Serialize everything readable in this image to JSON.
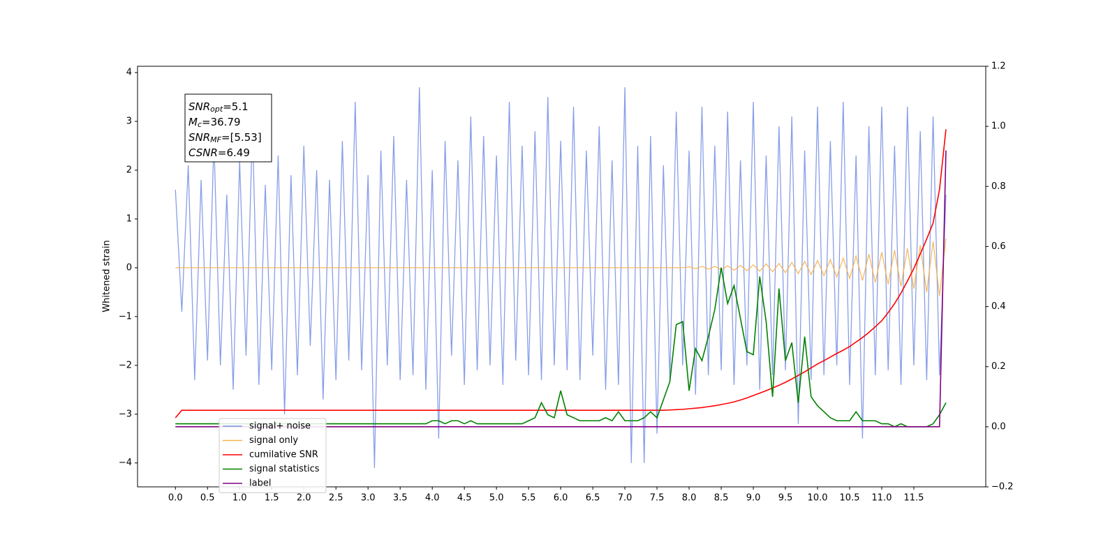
{
  "chart_data": {
    "type": "line",
    "y_label": "Whitened strain",
    "annotations": [
      {
        "symbol": "SNR",
        "sub": "opt",
        "text": "=5.1"
      },
      {
        "symbol": "M",
        "sub": "c",
        "text": "=36.79"
      },
      {
        "symbol": "SNR",
        "sub": "MF",
        "text": "=[5.53]"
      },
      {
        "symbol": "CSNR",
        "sub": null,
        "text": "=6.49"
      }
    ],
    "x": [
      0,
      0.1,
      0.2,
      0.3,
      0.4,
      0.5,
      0.6,
      0.7,
      0.8,
      0.9,
      1,
      1.1,
      1.2,
      1.3,
      1.4,
      1.5,
      1.6,
      1.7,
      1.8,
      1.9,
      2,
      2.1,
      2.2,
      2.3,
      2.4,
      2.5,
      2.6,
      2.7,
      2.8,
      2.9,
      3,
      3.1,
      3.2,
      3.3,
      3.4,
      3.5,
      3.6,
      3.7,
      3.8,
      3.9,
      4,
      4.1,
      4.2,
      4.3,
      4.4,
      4.5,
      4.6,
      4.7,
      4.8,
      4.9,
      5,
      5.1,
      5.2,
      5.3,
      5.4,
      5.5,
      5.6,
      5.7,
      5.8,
      5.9,
      6,
      6.1,
      6.2,
      6.3,
      6.4,
      6.5,
      6.6,
      6.7,
      6.8,
      6.9,
      7,
      7.1,
      7.2,
      7.3,
      7.4,
      7.5,
      7.6,
      7.7,
      7.8,
      7.9,
      8,
      8.1,
      8.2,
      8.3,
      8.4,
      8.5,
      8.6,
      8.7,
      8.8,
      8.9,
      9,
      9.1,
      9.2,
      9.3,
      9.4,
      9.5,
      9.6,
      9.7,
      9.8,
      9.9,
      10,
      10.1,
      10.2,
      10.3,
      10.4,
      10.5,
      10.6,
      10.7,
      10.8,
      10.9,
      11,
      11.1,
      11.2,
      11.3,
      11.4,
      11.5,
      11.6,
      11.7,
      11.8,
      11.9,
      12
    ],
    "series": [
      {
        "name": "signal+ noise",
        "color": "#7b93e6",
        "axis": "y",
        "values": [
          1.6,
          -0.9,
          2.1,
          -2.3,
          1.8,
          -1.9,
          2.6,
          -2.0,
          1.5,
          -2.5,
          2.2,
          -1.8,
          2.9,
          -2.4,
          1.7,
          -2.1,
          2.3,
          -3.0,
          1.9,
          -2.2,
          2.5,
          -1.6,
          2.0,
          -2.7,
          1.8,
          -2.3,
          2.6,
          -1.9,
          3.4,
          -2.1,
          1.9,
          -4.1,
          2.4,
          -2.0,
          2.7,
          -2.3,
          1.8,
          -2.2,
          3.7,
          -2.5,
          2.0,
          -3.5,
          2.6,
          -1.8,
          2.2,
          -2.4,
          3.1,
          -2.1,
          2.7,
          -2.0,
          2.3,
          -2.4,
          3.4,
          -1.9,
          2.5,
          -2.2,
          2.8,
          -2.3,
          3.5,
          -2.0,
          2.6,
          -2.1,
          3.3,
          -2.3,
          2.4,
          -1.8,
          2.9,
          -2.5,
          2.2,
          -2.4,
          3.7,
          -4.0,
          2.5,
          -4.0,
          2.7,
          -3.4,
          2.1,
          -2.3,
          3.2,
          -2.0,
          2.4,
          -2.6,
          3.3,
          -2.2,
          2.5,
          -2.1,
          3.2,
          -2.4,
          2.2,
          -2.0,
          3.4,
          -2.5,
          2.3,
          -2.2,
          2.9,
          -2.1,
          3.1,
          -3.2,
          2.4,
          -2.3,
          3.3,
          -2.2,
          2.6,
          -2.0,
          3.4,
          -2.4,
          2.3,
          -3.5,
          2.9,
          -2.2,
          3.3,
          -2.1,
          2.5,
          -2.4,
          3.3,
          -2.0,
          2.8,
          -2.3,
          3.1,
          -2.2,
          1.5
        ]
      },
      {
        "name": "signal only",
        "color": "#f5b14f",
        "axis": "y",
        "values": [
          0,
          0,
          0,
          0,
          0,
          0,
          0,
          0,
          0,
          0,
          0,
          0,
          0,
          0,
          0,
          0,
          0,
          0,
          0,
          0,
          0,
          0,
          0,
          0,
          0,
          0,
          0,
          0,
          0,
          0,
          0,
          0,
          0,
          0,
          0,
          0,
          0,
          0,
          0,
          0,
          0,
          0,
          0,
          0,
          0,
          0,
          0,
          0,
          0,
          0,
          0,
          0,
          0,
          0,
          0,
          0,
          0,
          0,
          0,
          0,
          0,
          0,
          0,
          0,
          0,
          0,
          0,
          0,
          0,
          0,
          0,
          0,
          0,
          0,
          0,
          0,
          0,
          0,
          0,
          0,
          0.02,
          -0.02,
          0.03,
          -0.03,
          0.03,
          -0.04,
          0.04,
          -0.05,
          0.05,
          -0.06,
          0.06,
          -0.07,
          0.08,
          -0.08,
          0.09,
          -0.1,
          0.11,
          -0.12,
          0.13,
          -0.14,
          0.15,
          -0.16,
          0.17,
          -0.19,
          0.2,
          -0.22,
          0.24,
          -0.26,
          0.28,
          -0.3,
          0.32,
          -0.34,
          0.36,
          -0.38,
          0.4,
          -0.43,
          0.46,
          -0.5,
          0.54,
          -0.58,
          0.6
        ]
      },
      {
        "name": "cumilative SNR",
        "color": "#ff0000",
        "axis": "y2",
        "values": [
          0.03,
          0.055,
          0.055,
          0.055,
          0.055,
          0.055,
          0.055,
          0.055,
          0.055,
          0.055,
          0.055,
          0.055,
          0.055,
          0.055,
          0.055,
          0.055,
          0.055,
          0.055,
          0.055,
          0.055,
          0.055,
          0.055,
          0.055,
          0.055,
          0.055,
          0.055,
          0.055,
          0.055,
          0.055,
          0.055,
          0.055,
          0.055,
          0.055,
          0.055,
          0.055,
          0.055,
          0.055,
          0.055,
          0.055,
          0.055,
          0.055,
          0.055,
          0.055,
          0.055,
          0.055,
          0.055,
          0.055,
          0.055,
          0.055,
          0.055,
          0.055,
          0.055,
          0.055,
          0.055,
          0.055,
          0.055,
          0.055,
          0.055,
          0.055,
          0.055,
          0.055,
          0.055,
          0.055,
          0.055,
          0.055,
          0.055,
          0.055,
          0.055,
          0.055,
          0.055,
          0.055,
          0.055,
          0.055,
          0.055,
          0.055,
          0.055,
          0.055,
          0.056,
          0.057,
          0.058,
          0.06,
          0.062,
          0.064,
          0.067,
          0.07,
          0.074,
          0.078,
          0.083,
          0.089,
          0.096,
          0.104,
          0.112,
          0.12,
          0.129,
          0.138,
          0.148,
          0.159,
          0.171,
          0.183,
          0.196,
          0.209,
          0.22,
          0.232,
          0.244,
          0.255,
          0.267,
          0.282,
          0.297,
          0.314,
          0.333,
          0.353,
          0.38,
          0.41,
          0.445,
          0.485,
          0.527,
          0.575,
          0.625,
          0.678,
          0.79,
          0.99
        ]
      },
      {
        "name": "signal statistics",
        "color": "#008000",
        "axis": "y2",
        "values": [
          0.01,
          0.01,
          0.01,
          0.01,
          0.01,
          0.01,
          0.01,
          0.01,
          0.01,
          0.01,
          0.01,
          0.01,
          0.01,
          0.01,
          0.01,
          0.01,
          0.01,
          0.01,
          0.01,
          0.01,
          0.01,
          0.01,
          0.01,
          0.01,
          0.01,
          0.01,
          0.01,
          0.01,
          0.01,
          0.01,
          0.01,
          0.01,
          0.01,
          0.01,
          0.01,
          0.01,
          0.01,
          0.01,
          0.01,
          0.01,
          0.02,
          0.02,
          0.01,
          0.02,
          0.02,
          0.01,
          0.02,
          0.01,
          0.01,
          0.01,
          0.01,
          0.01,
          0.01,
          0.01,
          0.01,
          0.02,
          0.03,
          0.08,
          0.04,
          0.03,
          0.12,
          0.04,
          0.03,
          0.02,
          0.02,
          0.02,
          0.02,
          0.03,
          0.02,
          0.05,
          0.02,
          0.02,
          0.02,
          0.03,
          0.05,
          0.03,
          0.09,
          0.15,
          0.34,
          0.35,
          0.12,
          0.26,
          0.22,
          0.3,
          0.39,
          0.53,
          0.41,
          0.47,
          0.36,
          0.25,
          0.24,
          0.5,
          0.35,
          0.1,
          0.46,
          0.22,
          0.28,
          0.08,
          0.3,
          0.1,
          0.07,
          0.05,
          0.03,
          0.02,
          0.02,
          0.02,
          0.05,
          0.02,
          0.02,
          0.02,
          0.01,
          0.01,
          0.0,
          0.01,
          0.0,
          0.0,
          0.0,
          0.0,
          0.01,
          0.04,
          0.08
        ]
      },
      {
        "name": "label",
        "color": "#800080",
        "axis": "y2",
        "values": [
          0,
          0,
          0,
          0,
          0,
          0,
          0,
          0,
          0,
          0,
          0,
          0,
          0,
          0,
          0,
          0,
          0,
          0,
          0,
          0,
          0,
          0,
          0,
          0,
          0,
          0,
          0,
          0,
          0,
          0,
          0,
          0,
          0,
          0,
          0,
          0,
          0,
          0,
          0,
          0,
          0,
          0,
          0,
          0,
          0,
          0,
          0,
          0,
          0,
          0,
          0,
          0,
          0,
          0,
          0,
          0,
          0,
          0,
          0,
          0,
          0,
          0,
          0,
          0,
          0,
          0,
          0,
          0,
          0,
          0,
          0,
          0,
          0,
          0,
          0,
          0,
          0,
          0,
          0,
          0,
          0,
          0,
          0,
          0,
          0,
          0,
          0,
          0,
          0,
          0,
          0,
          0,
          0,
          0,
          0,
          0,
          0,
          0,
          0,
          0,
          0,
          0,
          0,
          0,
          0,
          0,
          0,
          0,
          0,
          0,
          0,
          0,
          0,
          0,
          0,
          0,
          0,
          0,
          0,
          0,
          0.92
        ]
      }
    ],
    "xlim": [
      -0.59,
      12.62
    ],
    "xticks": [
      {
        "value": 0,
        "label": "0.0"
      },
      0.5,
      {
        "value": 1,
        "label": "1.0"
      },
      1.5,
      {
        "value": 2,
        "label": "2.0"
      },
      2.5,
      {
        "value": 3,
        "label": "3.0"
      },
      3.5,
      {
        "value": 4,
        "label": "4.0"
      },
      4.5,
      {
        "value": 5,
        "label": "5.0"
      },
      5.5,
      {
        "value": 6,
        "label": "6.0"
      },
      6.5,
      {
        "value": 7,
        "label": "7.0"
      },
      7.5,
      {
        "value": 8,
        "label": "8.0"
      },
      8.5,
      {
        "value": 9,
        "label": "9.0"
      },
      9.5,
      {
        "value": 10,
        "label": "10.0"
      },
      10.5,
      {
        "value": 11,
        "label": "11.0"
      },
      11.5
    ],
    "ylim": [
      -4.49,
      4.13
    ],
    "yticks": [
      {
        "value": -4,
        "label": "−4"
      },
      {
        "value": -3,
        "label": "−3"
      },
      {
        "value": -2,
        "label": "−2"
      },
      {
        "value": -1,
        "label": "−1"
      },
      0,
      1,
      2,
      3,
      4
    ],
    "y2lim": [
      -0.2,
      1.2
    ],
    "y2ticks": [
      {
        "value": -0.2,
        "label": "−0.2"
      },
      {
        "value": 0,
        "label": "0.0"
      },
      0.2,
      0.4,
      0.6,
      0.8,
      {
        "value": 1,
        "label": "1.0"
      },
      1.2
    ],
    "legend": "lower left",
    "grid": false
  }
}
